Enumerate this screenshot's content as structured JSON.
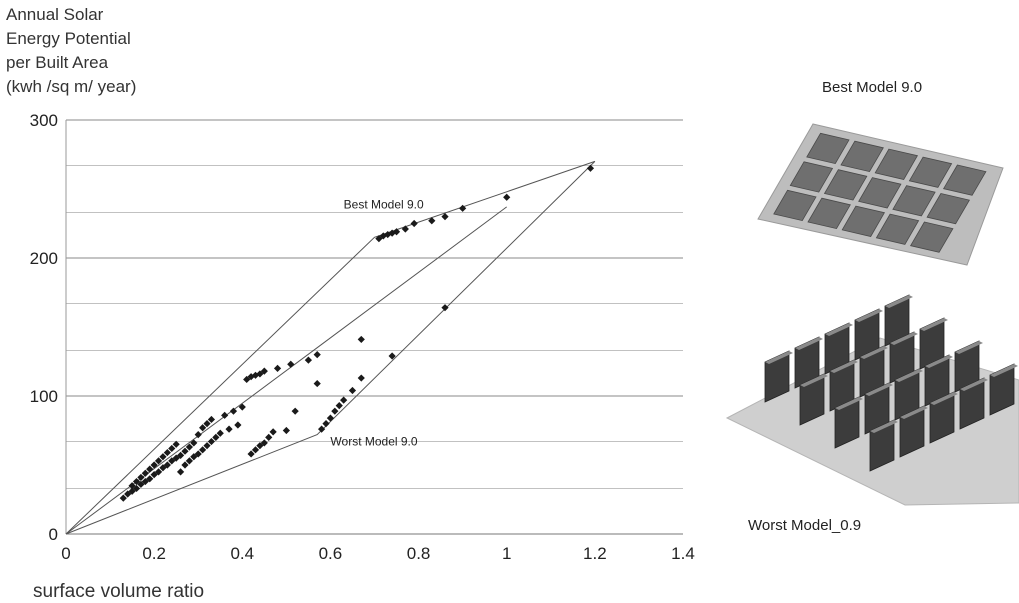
{
  "chart_data": {
    "type": "scatter",
    "ylabel_lines": [
      "Annual Solar",
      "Energy Potential",
      "per Built Area",
      "(kwh /sq m/ year)"
    ],
    "xlabel": "surface volume ratio",
    "xlim": [
      0,
      1.4
    ],
    "ylim": [
      0,
      300
    ],
    "x_ticks": [
      {
        "value": 0,
        "label": "0"
      },
      {
        "value": 0.2,
        "label": "0.2"
      },
      {
        "value": 0.4,
        "label": "0.4"
      },
      {
        "value": 0.6,
        "label": "0.6"
      },
      {
        "value": 0.8,
        "label": "0.8"
      },
      {
        "value": 1,
        "label": "1"
      },
      {
        "value": 1.2,
        "label": "1.2"
      },
      {
        "value": 1.4,
        "label": "1.4"
      }
    ],
    "y_ticks": [
      {
        "value": 0,
        "label": "0"
      },
      {
        "value": 100,
        "label": "100"
      },
      {
        "value": 200,
        "label": "200"
      },
      {
        "value": 300,
        "label": "300"
      }
    ],
    "major_gridlines": [
      0,
      100,
      200,
      300
    ],
    "minor_gridlines": [
      33,
      67,
      133,
      167,
      233,
      267
    ],
    "grid": true,
    "points": [
      [
        0.13,
        26
      ],
      [
        0.14,
        29
      ],
      [
        0.15,
        31
      ],
      [
        0.15,
        35
      ],
      [
        0.16,
        33
      ],
      [
        0.16,
        38
      ],
      [
        0.17,
        36
      ],
      [
        0.17,
        41
      ],
      [
        0.18,
        38
      ],
      [
        0.18,
        44
      ],
      [
        0.19,
        40
      ],
      [
        0.19,
        47
      ],
      [
        0.2,
        43
      ],
      [
        0.2,
        50
      ],
      [
        0.21,
        45
      ],
      [
        0.21,
        53
      ],
      [
        0.22,
        48
      ],
      [
        0.22,
        56
      ],
      [
        0.23,
        50
      ],
      [
        0.23,
        59
      ],
      [
        0.24,
        53
      ],
      [
        0.24,
        62
      ],
      [
        0.25,
        55
      ],
      [
        0.25,
        65
      ],
      [
        0.26,
        57
      ],
      [
        0.26,
        45
      ],
      [
        0.27,
        60
      ],
      [
        0.27,
        50
      ],
      [
        0.28,
        63
      ],
      [
        0.28,
        53
      ],
      [
        0.29,
        66
      ],
      [
        0.29,
        56
      ],
      [
        0.3,
        58
      ],
      [
        0.3,
        72
      ],
      [
        0.31,
        77
      ],
      [
        0.31,
        61
      ],
      [
        0.32,
        64
      ],
      [
        0.32,
        80
      ],
      [
        0.33,
        67
      ],
      [
        0.33,
        83
      ],
      [
        0.34,
        70
      ],
      [
        0.35,
        73
      ],
      [
        0.36,
        86
      ],
      [
        0.37,
        76
      ],
      [
        0.38,
        89
      ],
      [
        0.39,
        79
      ],
      [
        0.4,
        92
      ],
      [
        0.41,
        112
      ],
      [
        0.42,
        114
      ],
      [
        0.43,
        115
      ],
      [
        0.44,
        116
      ],
      [
        0.45,
        118
      ],
      [
        0.42,
        58
      ],
      [
        0.43,
        61
      ],
      [
        0.44,
        64
      ],
      [
        0.45,
        66
      ],
      [
        0.46,
        70
      ],
      [
        0.47,
        74
      ],
      [
        0.48,
        120
      ],
      [
        0.5,
        75
      ],
      [
        0.51,
        123
      ],
      [
        0.52,
        89
      ],
      [
        0.55,
        126
      ],
      [
        0.57,
        109
      ],
      [
        0.57,
        130
      ],
      [
        0.58,
        76
      ],
      [
        0.59,
        80
      ],
      [
        0.6,
        84
      ],
      [
        0.61,
        89
      ],
      [
        0.62,
        93
      ],
      [
        0.63,
        97
      ],
      [
        0.65,
        104
      ],
      [
        0.67,
        113
      ],
      [
        0.67,
        141
      ],
      [
        0.74,
        129
      ],
      [
        0.71,
        214
      ],
      [
        0.72,
        216
      ],
      [
        0.73,
        217
      ],
      [
        0.74,
        218
      ],
      [
        0.75,
        219
      ],
      [
        0.77,
        221
      ],
      [
        0.79,
        225
      ],
      [
        0.83,
        227
      ],
      [
        0.86,
        230
      ],
      [
        0.86,
        164
      ],
      [
        0.9,
        236
      ],
      [
        1.0,
        244
      ],
      [
        1.19,
        265
      ]
    ],
    "envelope_lines": [
      [
        [
          0,
          0
        ],
        [
          0.7,
          215
        ],
        [
          1.2,
          270
        ]
      ],
      [
        [
          0,
          0
        ],
        [
          0.57,
          72
        ],
        [
          1.2,
          270
        ]
      ],
      [
        [
          0,
          0
        ],
        [
          0.57,
          135
        ],
        [
          1.0,
          237
        ]
      ]
    ],
    "annotations": [
      {
        "text": "Best Model 9.0",
        "x": 0.63,
        "y": 236
      },
      {
        "text": "Worst Model 9.0",
        "x": 0.6,
        "y": 64
      }
    ]
  },
  "models": {
    "best_title": "Best Model 9.0",
    "worst_title": "Worst Model_0.9"
  }
}
